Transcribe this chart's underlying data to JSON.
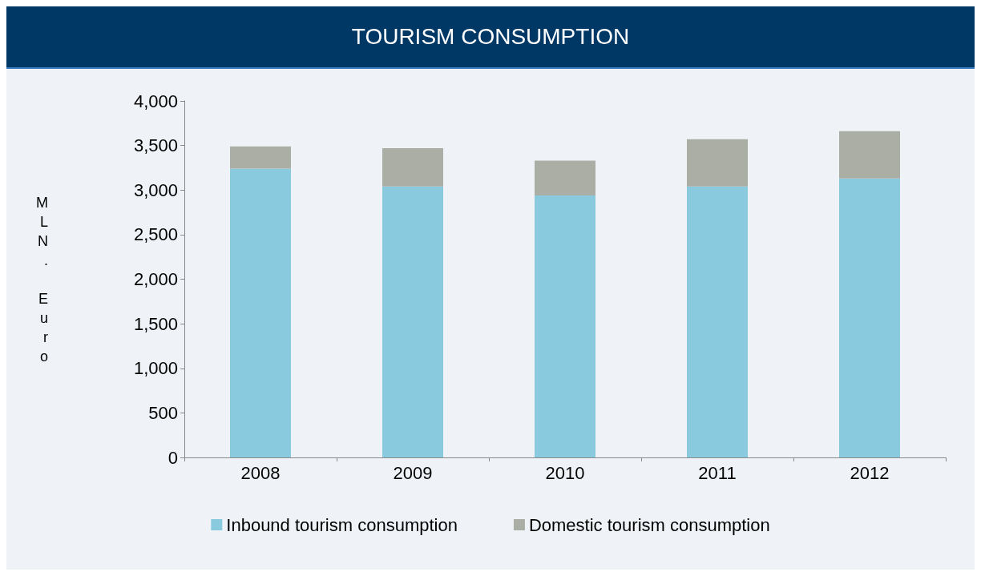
{
  "chart_data": {
    "type": "bar",
    "title": "TOURISM CONSUMPTION",
    "ylabel": "MLN. Euro",
    "categories": [
      "2008",
      "2009",
      "2010",
      "2011",
      "2012"
    ],
    "stacked": true,
    "series": [
      {
        "name": "Inbound tourism consumption",
        "color": "#89cadf",
        "values": [
          3240,
          3040,
          2940,
          3040,
          3130
        ]
      },
      {
        "name": "Domestic tourism consumption",
        "color": "#abaea5",
        "values": [
          250,
          430,
          390,
          530,
          530
        ]
      }
    ],
    "ylim": [
      0,
      4000
    ],
    "yticks": [
      0,
      500,
      {
        "value": 1000,
        "label": "1,000"
      },
      {
        "value": 1500,
        "label": "1,500"
      },
      {
        "value": 2000,
        "label": "2,000"
      },
      {
        "value": 2500,
        "label": "2,500"
      },
      {
        "value": 3000,
        "label": "3,000"
      },
      {
        "value": 3500,
        "label": "3,500"
      },
      {
        "value": 4000,
        "label": "4,000"
      }
    ],
    "grid": false,
    "legend": "bottom"
  }
}
